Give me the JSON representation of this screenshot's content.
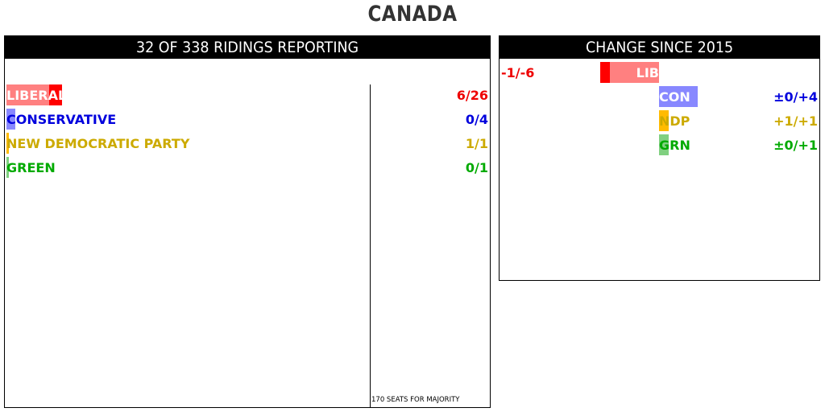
{
  "title": "CANADA",
  "seats_panel": {
    "header": "32 OF 338 RIDINGS REPORTING",
    "majority_label": "170 SEATS FOR MAJORITY"
  },
  "change_panel": {
    "header": "CHANGE SINCE 2015"
  },
  "chart_data": [
    {
      "type": "bar",
      "title": "32 OF 338 RIDINGS REPORTING",
      "categories": [
        "LIBERAL",
        "CONSERVATIVE",
        "NEW DEMOCRATIC PARTY",
        "GREEN"
      ],
      "series": [
        {
          "values": [
            6,
            0,
            1,
            0
          ]
        },
        {
          "values": [
            26,
            4,
            1,
            1
          ]
        }
      ],
      "labels": [
        "6/26",
        "0/4",
        "1/1",
        "0/1"
      ],
      "colors": {
        "current": [
          "#ff0000",
          "#0000dd",
          "#ffbb00",
          "#00aa00"
        ],
        "prior": [
          "#ff8080",
          "#8888ff",
          "#ffcc55",
          "#80d080"
        ],
        "text": [
          "#ee0000",
          "#0000dd",
          "#ccaa00",
          "#00aa00"
        ]
      },
      "xlim": [
        0,
        170
      ],
      "majority": 170,
      "grid": false
    },
    {
      "type": "bar",
      "title": "CHANGE SINCE 2015",
      "categories": [
        "LIB",
        "CON",
        "NDP",
        "GRN"
      ],
      "series": [
        {
          "values": [
            -1,
            0,
            1,
            0
          ]
        },
        {
          "values": [
            -6,
            4,
            1,
            1
          ]
        }
      ],
      "labels": [
        "-1/-6",
        "±0/+4",
        "+1/+1",
        "±0/+1"
      ],
      "colors": {
        "current": [
          "#ff0000",
          "#0000dd",
          "#ffbb00",
          "#00aa00"
        ],
        "prior": [
          "#ff8080",
          "#8888ff",
          "#ffcc55",
          "#80d080"
        ],
        "text": [
          "#ee0000",
          "#0000dd",
          "#ccaa00",
          "#00aa00"
        ]
      },
      "grid": false
    }
  ]
}
